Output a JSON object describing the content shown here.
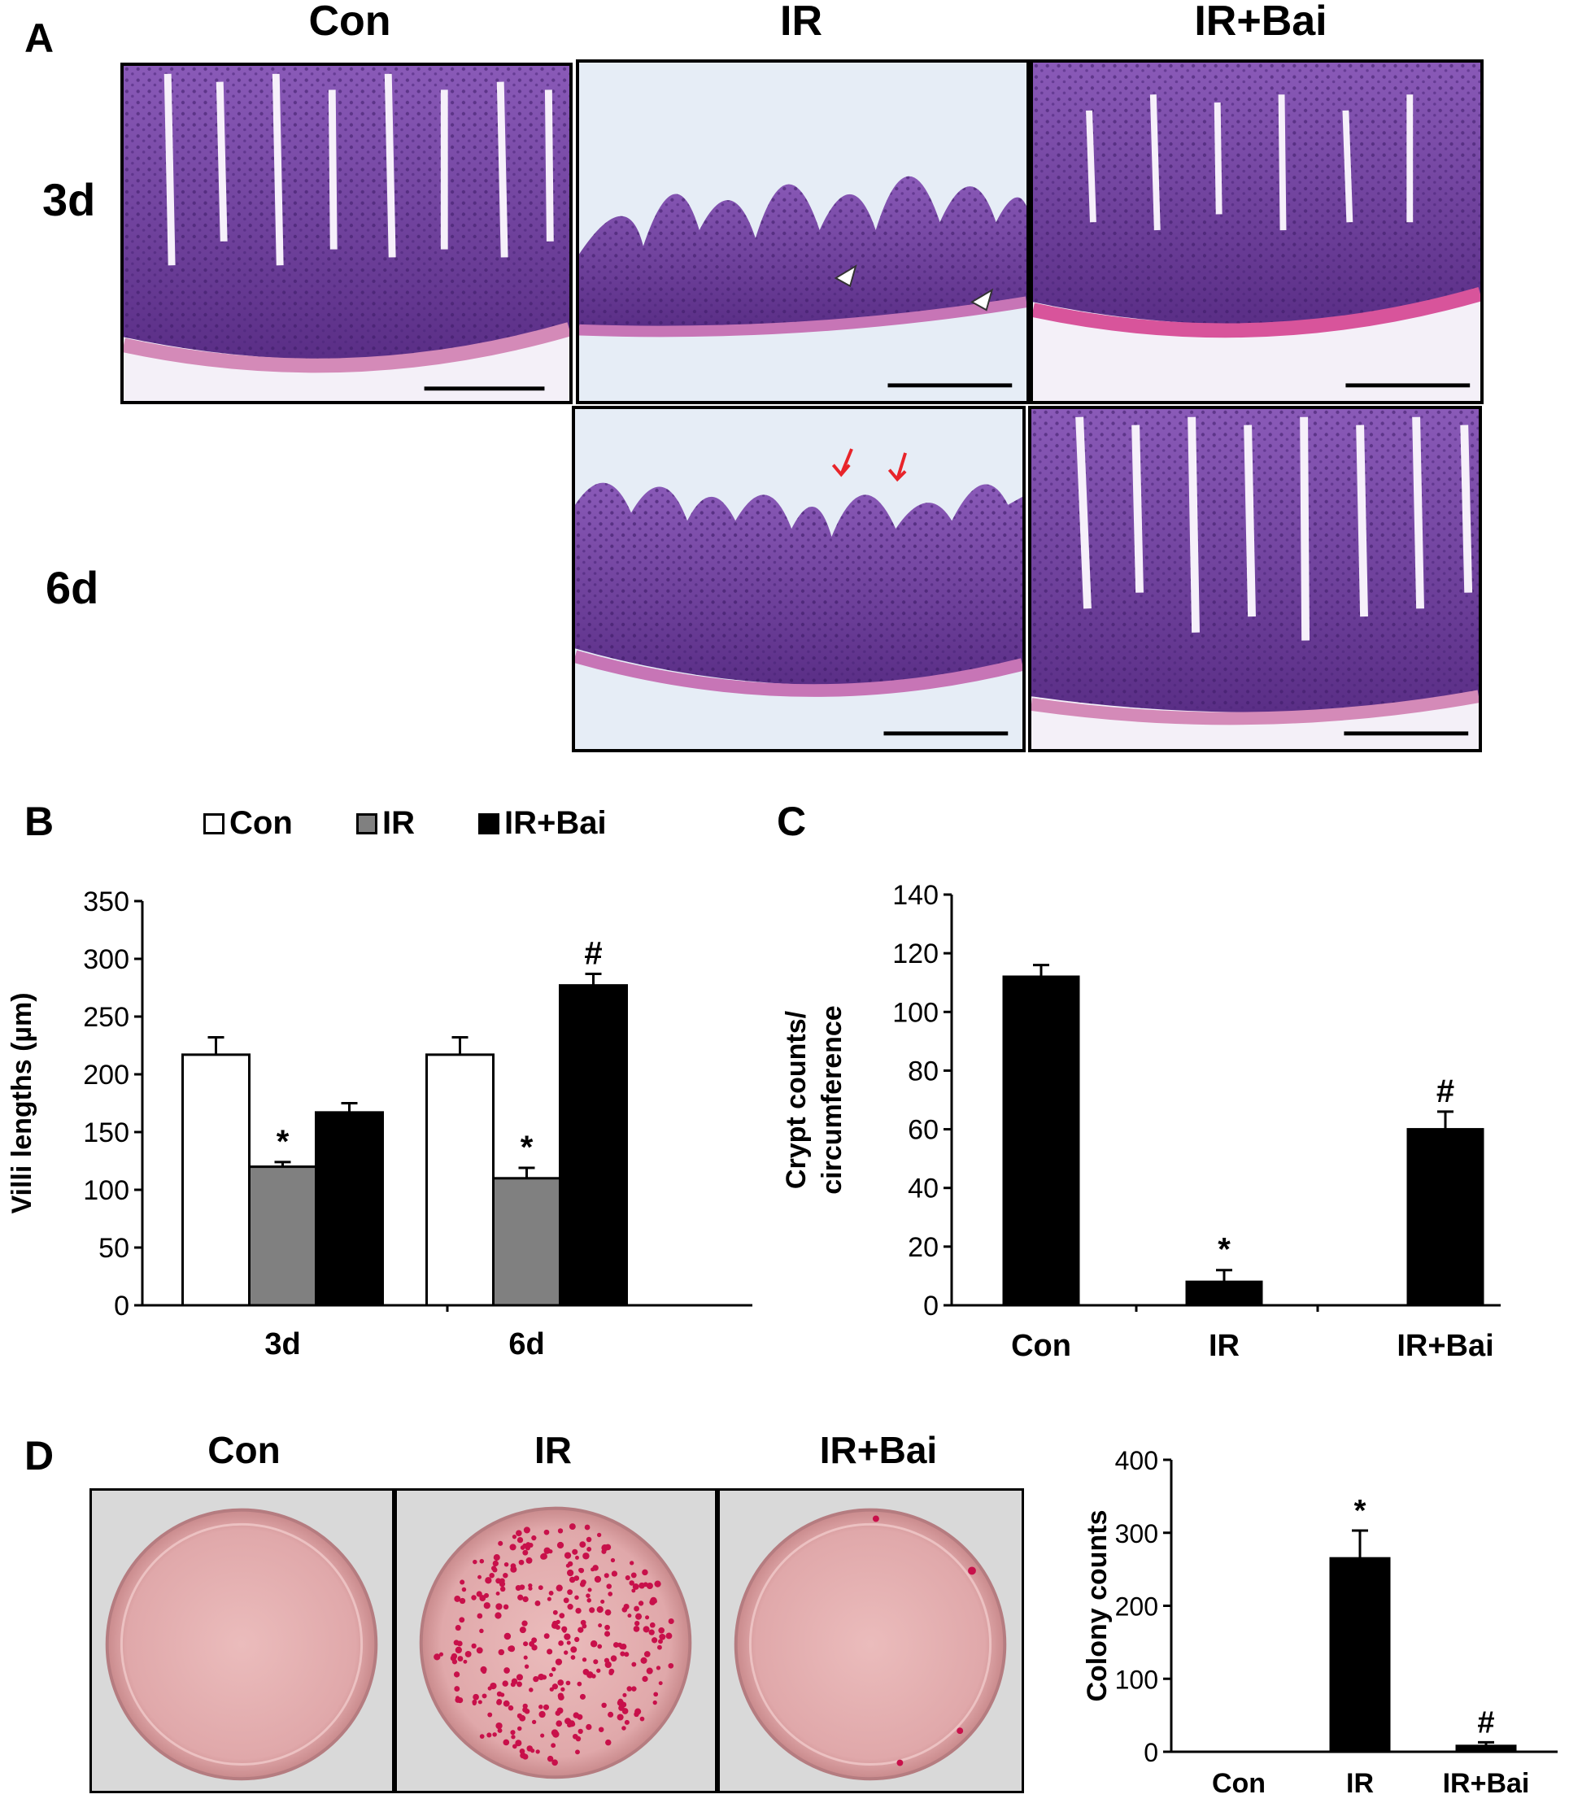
{
  "figure": {
    "panel_labels": {
      "a": "A",
      "b": "B",
      "c": "C",
      "d": "D"
    },
    "panel_a": {
      "col_headers": [
        "Con",
        "IR",
        "IR+Bai"
      ],
      "row_labels": [
        "3d",
        "6d"
      ],
      "images": [
        "H&E small intestine section Con 3d",
        "H&E IR 3d",
        "H&E IR+Bai 3d",
        "H&E IR 6d",
        "H&E IR+Bai 6d"
      ]
    },
    "panel_b": {
      "legend": [
        "Con",
        "IR",
        "IR+Bai"
      ],
      "colors": {
        "Con": "#ffffff",
        "IR": "#808080",
        "IR+Bai": "#000000"
      }
    },
    "panel_d": {
      "plate_headers": [
        "Con",
        "IR",
        "IR+Bai"
      ]
    }
  },
  "chart_data": [
    {
      "id": "B",
      "type": "bar",
      "categories": [
        "3d",
        "6d"
      ],
      "series": [
        {
          "name": "Con",
          "values": [
            217,
            217
          ],
          "errors": [
            15,
            15
          ],
          "annotations": [
            "",
            ""
          ]
        },
        {
          "name": "IR",
          "values": [
            120,
            110
          ],
          "errors": [
            4,
            9
          ],
          "annotations": [
            "*",
            "*"
          ]
        },
        {
          "name": "IR+Bai",
          "values": [
            167,
            277
          ],
          "errors": [
            8,
            10
          ],
          "annotations": [
            "",
            "#"
          ]
        }
      ],
      "ylabel": "Villi lengths (µm)",
      "ylim": [
        0,
        350
      ],
      "yticks": [
        0,
        50,
        100,
        150,
        200,
        250,
        300,
        350
      ]
    },
    {
      "id": "C",
      "type": "bar",
      "categories": [
        "Con",
        "IR",
        "IR+Bai"
      ],
      "values": [
        112,
        8,
        60
      ],
      "errors": [
        4,
        4,
        6
      ],
      "annotations": [
        "",
        "*",
        "#"
      ],
      "ylabel": "Crypt counts/ circumference",
      "ylabel_lines": [
        "Crypt counts/",
        "circumference"
      ],
      "ylim": [
        0,
        140
      ],
      "yticks": [
        0,
        20,
        40,
        60,
        80,
        100,
        120,
        140
      ]
    },
    {
      "id": "D",
      "type": "bar",
      "categories": [
        "Con",
        "IR",
        "IR+Bai"
      ],
      "values": [
        0,
        265,
        8
      ],
      "errors": [
        0,
        38,
        5
      ],
      "annotations": [
        "",
        "*",
        "#"
      ],
      "ylabel": "Colony counts",
      "ylim": [
        0,
        400
      ],
      "yticks": [
        0,
        100,
        200,
        300,
        400
      ]
    }
  ]
}
